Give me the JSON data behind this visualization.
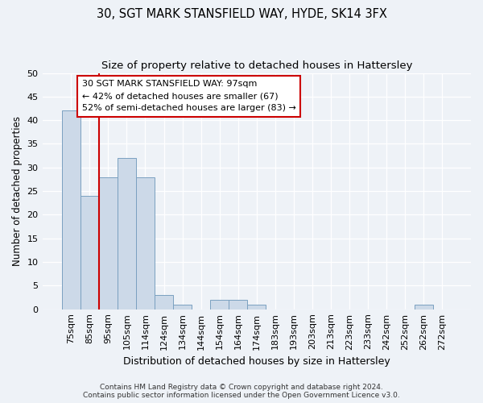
{
  "title": "30, SGT MARK STANSFIELD WAY, HYDE, SK14 3FX",
  "subtitle": "Size of property relative to detached houses in Hattersley",
  "xlabel": "Distribution of detached houses by size in Hattersley",
  "ylabel": "Number of detached properties",
  "bin_labels": [
    "75sqm",
    "85sqm",
    "95sqm",
    "105sqm",
    "114sqm",
    "124sqm",
    "134sqm",
    "144sqm",
    "154sqm",
    "164sqm",
    "174sqm",
    "183sqm",
    "193sqm",
    "203sqm",
    "213sqm",
    "223sqm",
    "233sqm",
    "242sqm",
    "252sqm",
    "262sqm",
    "272sqm"
  ],
  "bar_values": [
    42,
    24,
    28,
    32,
    28,
    3,
    1,
    0,
    2,
    2,
    1,
    0,
    0,
    0,
    0,
    0,
    0,
    0,
    0,
    1,
    0
  ],
  "bar_color": "#ccd9e8",
  "bar_edge_color": "#7aa0c0",
  "vline_color": "#cc0000",
  "vline_index": 2,
  "annotation_text": "30 SGT MARK STANSFIELD WAY: 97sqm\n← 42% of detached houses are smaller (67)\n52% of semi-detached houses are larger (83) →",
  "annotation_box_facecolor": "white",
  "annotation_box_edgecolor": "#cc0000",
  "ylim": [
    0,
    50
  ],
  "yticks": [
    0,
    5,
    10,
    15,
    20,
    25,
    30,
    35,
    40,
    45,
    50
  ],
  "footer_line1": "Contains HM Land Registry data © Crown copyright and database right 2024.",
  "footer_line2": "Contains public sector information licensed under the Open Government Licence v3.0.",
  "background_color": "#eef2f7",
  "plot_bg_color": "#eef2f7",
  "title_fontsize": 10.5,
  "subtitle_fontsize": 9.5,
  "ylabel_fontsize": 8.5,
  "xlabel_fontsize": 9,
  "tick_fontsize": 8,
  "annotation_fontsize": 8,
  "footer_fontsize": 6.5
}
